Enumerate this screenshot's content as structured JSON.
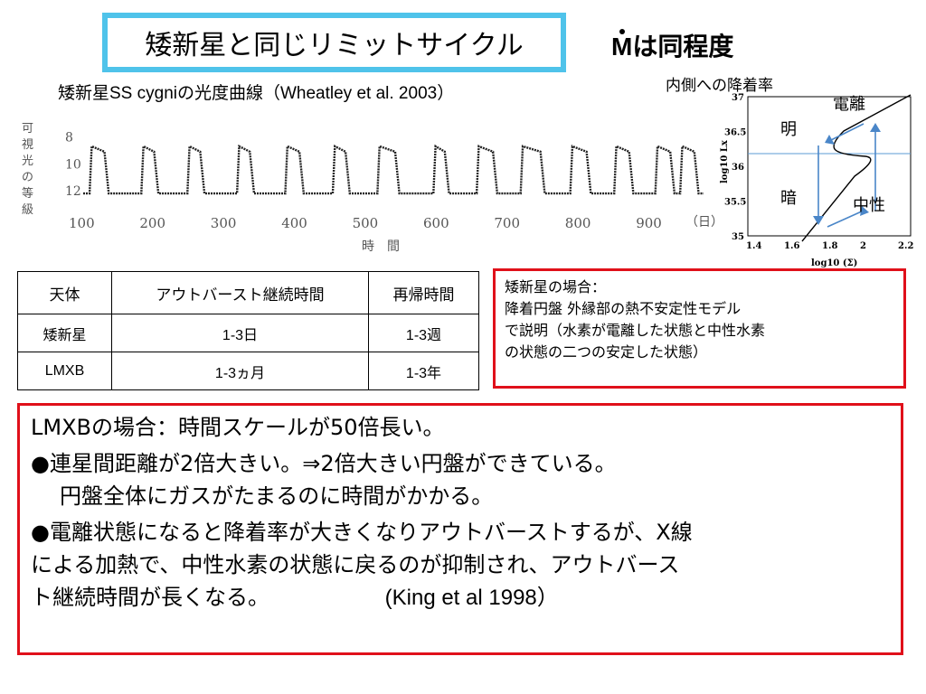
{
  "title": "矮新星と同じリミットサイクル",
  "mdot": {
    "symbol": "M",
    "suffix": "は同程度"
  },
  "subtitle": "矮新星SS cygniの光度曲線（Wheatley et al. 2003）",
  "accretion_label": "内側への降着率",
  "lightcurve": {
    "ylabel": "可視光の等級",
    "xlabel": "時　間",
    "yticks": [
      "8",
      "10",
      "12"
    ],
    "xticks": [
      "100",
      "200",
      "300",
      "400",
      "500",
      "600",
      "700",
      "800",
      "900"
    ],
    "xunit": "（日）",
    "ylim": [
      13,
      7.5
    ],
    "xlim": [
      100,
      975
    ],
    "outbursts": [
      [
        112,
        130
      ],
      [
        185,
        200
      ],
      [
        250,
        265
      ],
      [
        320,
        335
      ],
      [
        388,
        405
      ],
      [
        455,
        470
      ],
      [
        518,
        540
      ],
      [
        597,
        610
      ],
      [
        658,
        678
      ],
      [
        720,
        745
      ],
      [
        790,
        810
      ],
      [
        852,
        870
      ],
      [
        910,
        928
      ],
      [
        945,
        962
      ]
    ]
  },
  "scurve": {
    "ylabel": "log10 Lx",
    "xlabel": "log10 (Σ)",
    "yticks": [
      "37",
      "36.5",
      "36",
      "35.5",
      "35"
    ],
    "xticks": [
      "1.4",
      "1.6",
      "1.8",
      "2",
      "2.2"
    ],
    "label_ionized": "電離",
    "label_bright": "明",
    "label_dark": "暗",
    "label_neutral": "中性"
  },
  "table": {
    "headers": [
      "天体",
      "アウトバースト継続時間",
      "再帰時間"
    ],
    "rows": [
      [
        "矮新星",
        "1-3日",
        "1-3週"
      ],
      [
        "LMXB",
        "1-3ヵ月",
        "1-3年"
      ]
    ]
  },
  "dwarf_box": {
    "lines": [
      "矮新星の場合：",
      "降着円盤 外縁部の熱不安定性モデル",
      "で説明（水素が電離した状態と中性水素",
      "の状態の二つの安定した状態）"
    ]
  },
  "lmxb_box": {
    "heading": "LMXBの場合：時間スケールが50倍長い。",
    "bullet1": "●連星間距離が2倍大きい。⇒2倍大きい円盤ができている。",
    "bullet1_cont": "円盤全体にガスがたまるのに時間がかかる。",
    "bullet2": "●電離状態になると降着率が大きくなりアウトバーストするが、X線",
    "bullet2_cont1": "による加熱で、中性水素の状態に戻るのが抑制され、アウトバース",
    "bullet2_cont2": "ト継続時間が長くなる。",
    "citation": "(King et al 1998）"
  }
}
